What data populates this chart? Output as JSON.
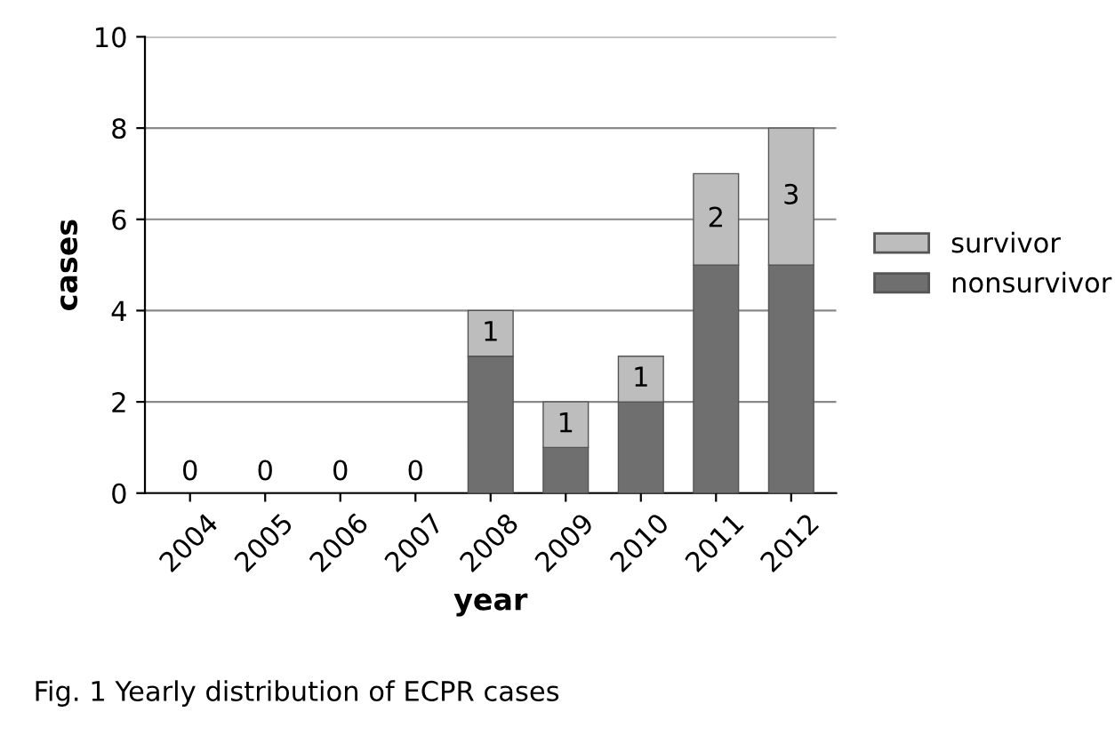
{
  "chart_data": {
    "type": "bar",
    "stacked": true,
    "xlabel": "year",
    "ylabel": "cases",
    "categories": [
      "2004",
      "2005",
      "2006",
      "2007",
      "2008",
      "2009",
      "2010",
      "2011",
      "2012"
    ],
    "series": [
      {
        "name": "nonsurvivor",
        "color": "#6f6f6f",
        "values": [
          0,
          0,
          0,
          0,
          3,
          1,
          2,
          5,
          5
        ]
      },
      {
        "name": "survivor",
        "color": "#bdbdbd",
        "values": [
          0,
          0,
          0,
          0,
          1,
          1,
          1,
          2,
          3
        ],
        "value_labels": [
          "0",
          "0",
          "0",
          "0",
          "1",
          "1",
          "1",
          "2",
          "3"
        ]
      }
    ],
    "ylim": [
      0,
      10
    ],
    "yticks": [
      0,
      2,
      4,
      6,
      8,
      10
    ],
    "grid": "y",
    "legend": "right",
    "annotations": [
      "Fig. 1 Yearly distribution of ECPR cases"
    ]
  }
}
